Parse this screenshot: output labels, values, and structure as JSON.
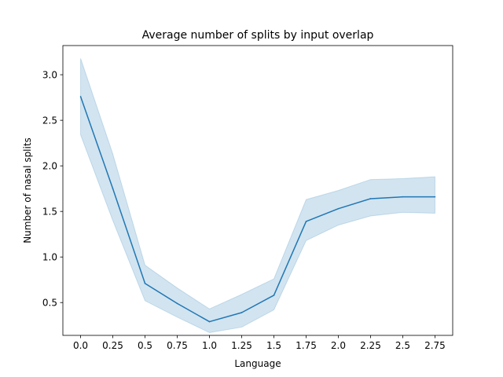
{
  "chart_data": {
    "type": "line",
    "title": "Average number of splits by input overlap",
    "xlabel": "Language",
    "ylabel": "Number of nasal splits",
    "x": [
      0.0,
      0.25,
      0.5,
      0.75,
      1.0,
      1.25,
      1.5,
      1.75,
      2.0,
      2.25,
      2.5,
      2.75
    ],
    "x_tick_labels": [
      "0.0",
      "0.25",
      "0.5",
      "0.75",
      "1.0",
      "1.25",
      "1.5",
      "1.75",
      "2.0",
      "2.25",
      "2.5",
      "2.75"
    ],
    "y_ticks": [
      0.5,
      1.0,
      1.5,
      2.0,
      2.5,
      3.0
    ],
    "y_tick_labels": [
      "0.5",
      "1.0",
      "1.5",
      "2.0",
      "2.5",
      "3.0"
    ],
    "xlim": [
      -0.1375,
      2.8875
    ],
    "ylim": [
      0.14,
      3.32
    ],
    "grid": false,
    "series": [
      {
        "values": [
          2.76,
          1.75,
          0.71,
          0.49,
          0.29,
          0.39,
          0.58,
          1.39,
          1.53,
          1.64,
          1.66,
          1.66
        ],
        "ci_lower": [
          2.34,
          1.4,
          0.52,
          0.34,
          0.17,
          0.23,
          0.42,
          1.18,
          1.35,
          1.45,
          1.49,
          1.48
        ],
        "ci_upper": [
          3.18,
          2.13,
          0.91,
          0.66,
          0.43,
          0.59,
          0.76,
          1.63,
          1.73,
          1.85,
          1.86,
          1.88
        ],
        "color": "#1f77b4"
      }
    ]
  }
}
